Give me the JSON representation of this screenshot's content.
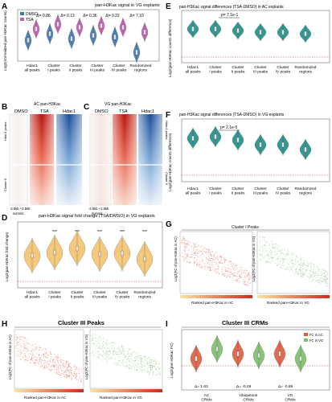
{
  "panels": {
    "A": {
      "letter": "A",
      "title": "pan-H3Kac signal in VG explants",
      "legend": [
        "DMSO",
        "TSA"
      ],
      "ylabel": "Log2(normalized pan-H3Kac counts)",
      "deltas": [
        "Δ= 0.86",
        "Δ= 0.13",
        "Δ= 0.36",
        "Δ= 0.22",
        "Δ= 7.10"
      ],
      "categories": [
        "Hdac1 all peaks",
        "Cluster I peaks",
        "Cluster II peaks",
        "Cluster III peaks",
        "Cluster IV peaks",
        "Randomized regions"
      ]
    },
    "B": {
      "letter": "B",
      "title": "AC pan-H3Kac",
      "cols": [
        "DMSO",
        "TSA",
        "Hdac1"
      ],
      "rows": [
        "Hdac1 peaks",
        "Cluster II"
      ],
      "xlabel": "-2.5kb +2.5kb",
      "xsub": "summit"
    },
    "C": {
      "letter": "C",
      "title": "VG pan-H3Kac",
      "cols": [
        "DMSO",
        "TSA",
        "Hdac1"
      ],
      "rows": [
        "Hdac1 peaks",
        "Cluster II"
      ],
      "xlabel": "-2.5kb +2.5kb",
      "xsub": "summit"
    },
    "D": {
      "letter": "D",
      "title": "pan-H3Kac signal fold change (TSA/DMSO) in VG explants",
      "ylabel": "Log2(pan-H3Kac fold change)",
      "sig": [
        "***",
        "***",
        "***",
        "***",
        "***"
      ],
      "categories": [
        "Hdac1 all peaks",
        "Cluster I peaks",
        "Cluster II peaks",
        "Cluster III peaks",
        "Cluster IV peaks",
        "Randomized regions"
      ]
    },
    "E": {
      "letter": "E",
      "title": "pan-H3Kac signal differences (TSA-DMSO) in AC explants",
      "pvalue": "p= 7.1e-1",
      "ylabel": "Log2(pan-H3Kac counts difference)",
      "categories": [
        "Hdac1 all peaks",
        "Cluster I peaks",
        "Cluster II peaks",
        "Cluster III peaks",
        "Cluster IV peaks",
        "Randomized regions"
      ]
    },
    "F": {
      "letter": "F",
      "title": "pan-H3Kac signal differences (TSA-DMSO) in VG explants",
      "pvalue": "p= 2.1e-5",
      "ylabel": "Log2(pan-H3Kac counts difference)",
      "categories": [
        "Hdac1 all peaks",
        "Cluster I peaks",
        "Cluster II peaks",
        "Cluster III peaks",
        "Cluster IV peaks",
        "Randomized regions"
      ]
    },
    "G": {
      "letter": "G",
      "title": "Cluster I Peaks",
      "left_ylabel": "Log2(FC of pan-H3Kac in AC)",
      "left_xlabel": "Ranked pan-H3Kac in AC",
      "right_ylabel": "Log2(FC of pan-H3Kac in VG)",
      "right_xlabel": "Ranked pan-H3Kac in VG"
    },
    "H": {
      "letter": "H",
      "title": "Cluster III Peaks",
      "left_ylabel": "Log2(FC of pan-H3Kac in AC)",
      "left_xlabel": "Ranked pan-H3Kac in AC",
      "right_ylabel": "Log2(FC of pan-H3Kac in VG)",
      "right_xlabel": "Ranked pan-H3Kac in VG"
    },
    "I": {
      "letter": "I",
      "title": "Cluster III CRMs",
      "ylabel": "Log2(pan-H3Kac FC)",
      "legend": [
        "FC in AC",
        "FC in VG"
      ],
      "deltas": [
        "Δ= 1.63",
        "Δ= -0.29",
        "Δ= -0.86"
      ],
      "categories": [
        "AC CRMs",
        "Ubiquitous CRMs",
        "VG CRMs"
      ]
    }
  },
  "colors": {
    "dmso": "#3a78b5",
    "tsa": "#c558b8",
    "fold": "#f5c46e",
    "teal": "#1f8f86",
    "ac_red": "#e05a3e",
    "vg_green": "#7cbf6a",
    "red_line": "#d42a2a"
  }
}
